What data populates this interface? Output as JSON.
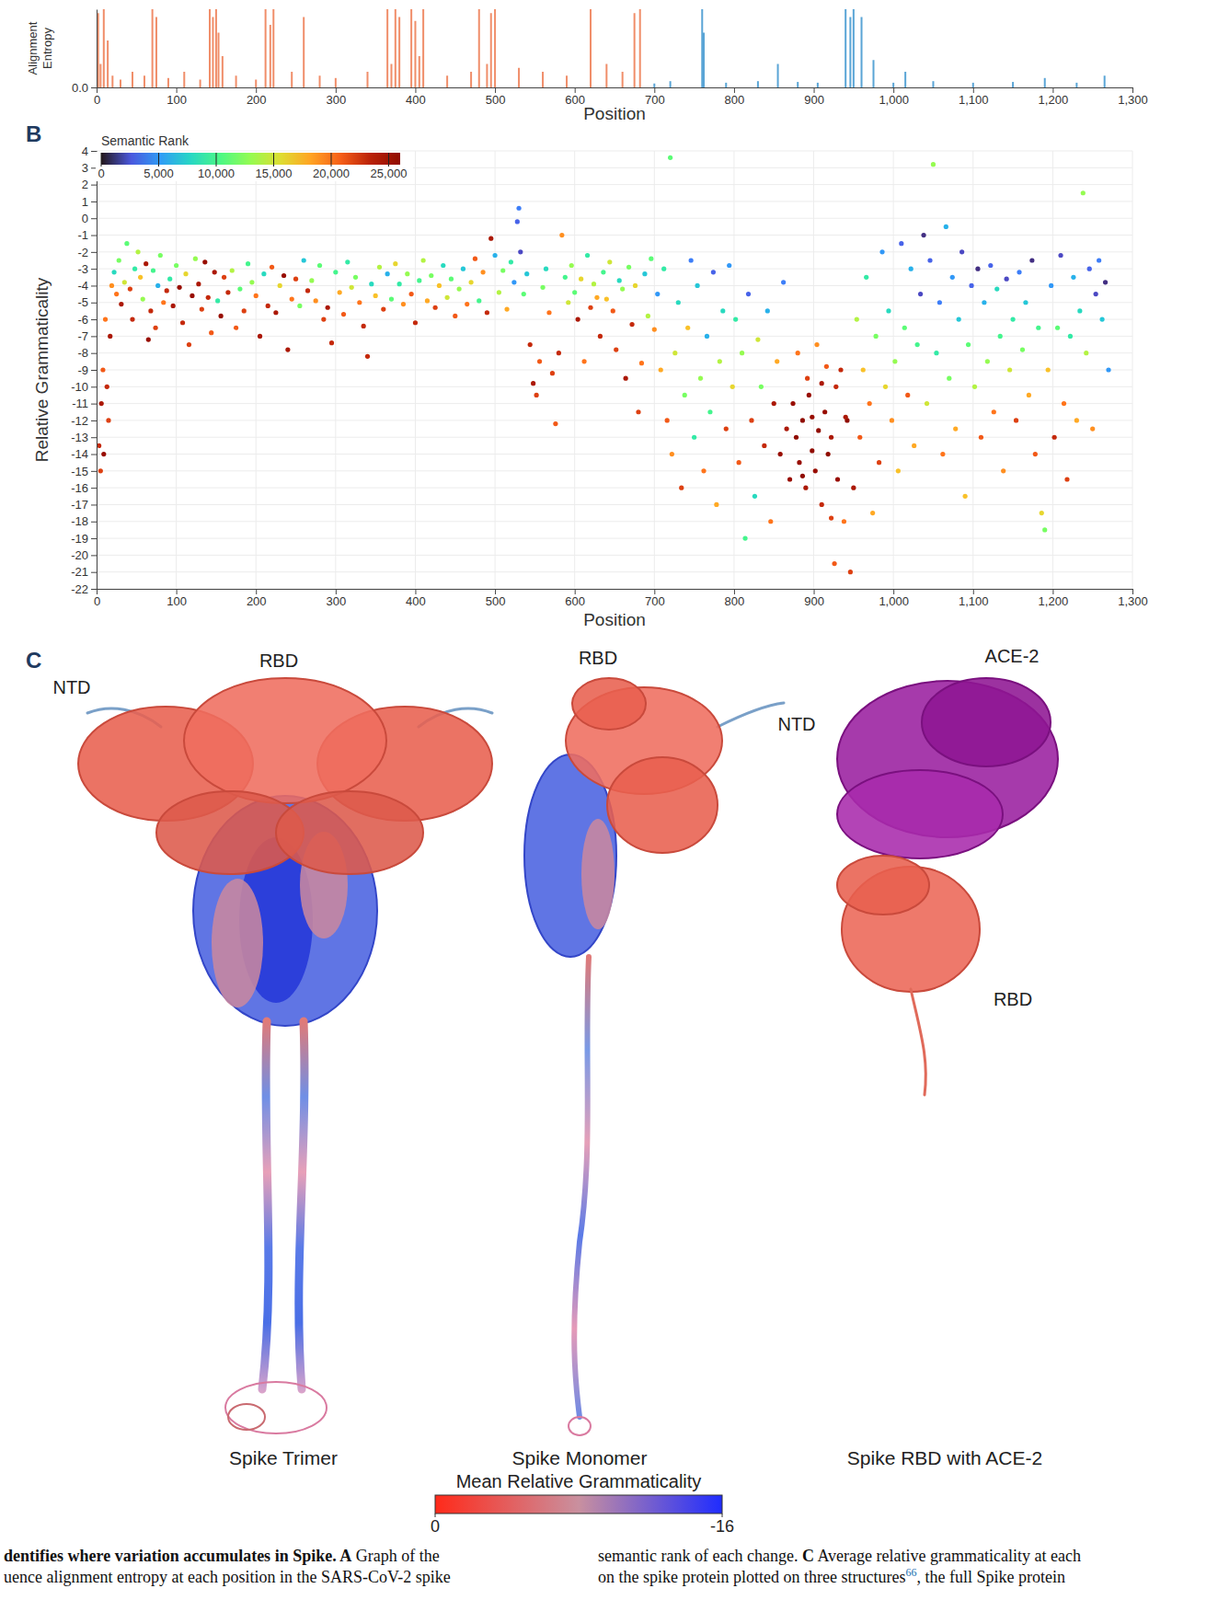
{
  "chart_data": [
    {
      "type": "bar",
      "x_label": "Position",
      "y_label": "Alignment Entropy",
      "xlim": [
        0,
        1300
      ],
      "xticks": [
        0,
        100,
        200,
        300,
        400,
        500,
        600,
        700,
        800,
        900,
        {
          "value": 1000,
          "label": "1,000"
        },
        {
          "value": 1100,
          "label": "1,100"
        },
        {
          "value": 1200,
          "label": "1,200"
        },
        {
          "value": 1300,
          "label": "1,300"
        }
      ],
      "ylim": [
        0,
        1
      ],
      "yticks": [
        {
          "value": 0,
          "label": "0.0"
        }
      ],
      "series": [
        {
          "color": "#f08e6a",
          "x": [
            2,
            5,
            9,
            14,
            20,
            30,
            45,
            60,
            70,
            75,
            90,
            110,
            130,
            142,
            146,
            150,
            153,
            158,
            175,
            200,
            212,
            218,
            222,
            245,
            260,
            280,
            300,
            340,
            365,
            370,
            375,
            380,
            395,
            400,
            405,
            410,
            440,
            470,
            480,
            490,
            495,
            500,
            530,
            560,
            590,
            620,
            640,
            660,
            675,
            682
          ],
          "values": [
            0.95,
            0.3,
            1.0,
            0.6,
            0.15,
            0.1,
            0.2,
            0.15,
            1.0,
            0.9,
            0.12,
            0.2,
            0.1,
            1.0,
            0.9,
            1.0,
            0.7,
            0.4,
            0.15,
            0.1,
            1.0,
            0.8,
            1.0,
            0.2,
            0.9,
            0.15,
            0.12,
            0.2,
            1.0,
            0.3,
            1.0,
            0.9,
            1.0,
            0.85,
            0.4,
            1.0,
            0.15,
            0.2,
            1.0,
            0.3,
            0.95,
            1.0,
            0.25,
            0.2,
            0.15,
            1.0,
            0.3,
            0.2,
            0.95,
            1.0
          ]
        },
        {
          "color": "#5aa5d6",
          "x": [
            700,
            720,
            760,
            762,
            790,
            830,
            855,
            880,
            905,
            940,
            946,
            950,
            960,
            975,
            1000,
            1015,
            1050,
            1100,
            1150,
            1190,
            1230,
            1265
          ],
          "values": [
            0.05,
            0.08,
            1.0,
            0.7,
            0.06,
            0.08,
            0.3,
            0.07,
            0.06,
            1.0,
            0.9,
            1.0,
            0.9,
            0.35,
            0.06,
            0.2,
            0.08,
            0.06,
            0.07,
            0.12,
            0.06,
            0.15
          ]
        }
      ]
    },
    {
      "type": "scatter",
      "x_label": "Position",
      "y_label": "Relative Grammaticality",
      "xlim": [
        0,
        1300
      ],
      "xticks": [
        0,
        100,
        200,
        300,
        400,
        500,
        600,
        700,
        800,
        900,
        {
          "value": 1000,
          "label": "1,000"
        },
        {
          "value": 1100,
          "label": "1,100"
        },
        {
          "value": 1200,
          "label": "1,200"
        },
        {
          "value": 1300,
          "label": "1,300"
        }
      ],
      "ylim": [
        -22,
        4
      ],
      "yticks": [
        -22,
        -21,
        -20,
        -19,
        -18,
        -17,
        -16,
        -15,
        -14,
        -13,
        -12,
        -11,
        -10,
        -9,
        -8,
        -7,
        -6,
        -5,
        -4,
        -3,
        -2,
        -1,
        0,
        1,
        2,
        3,
        4
      ],
      "grid": true,
      "marker": "circle",
      "x": [
        3,
        5,
        6,
        8,
        9,
        11,
        13,
        15,
        17,
        19,
        22,
        25,
        28,
        31,
        35,
        38,
        42,
        45,
        48,
        52,
        55,
        58,
        62,
        65,
        68,
        71,
        74,
        77,
        80,
        84,
        88,
        92,
        96,
        100,
        104,
        108,
        112,
        116,
        120,
        124,
        128,
        132,
        136,
        140,
        144,
        148,
        152,
        156,
        160,
        165,
        170,
        175,
        180,
        185,
        190,
        195,
        200,
        205,
        210,
        215,
        220,
        225,
        230,
        235,
        240,
        245,
        250,
        255,
        260,
        265,
        270,
        275,
        280,
        285,
        290,
        295,
        300,
        305,
        310,
        315,
        320,
        325,
        330,
        335,
        340,
        345,
        350,
        355,
        360,
        365,
        370,
        375,
        380,
        385,
        390,
        395,
        400,
        405,
        410,
        415,
        420,
        425,
        430,
        435,
        440,
        445,
        450,
        455,
        460,
        465,
        470,
        475,
        480,
        485,
        490,
        495,
        500,
        505,
        510,
        515,
        520,
        524,
        528,
        530,
        532,
        536,
        540,
        544,
        548,
        552,
        556,
        560,
        564,
        568,
        572,
        576,
        580,
        584,
        588,
        592,
        596,
        600,
        604,
        608,
        612,
        616,
        620,
        624,
        628,
        632,
        636,
        640,
        644,
        648,
        652,
        656,
        660,
        664,
        668,
        672,
        676,
        680,
        684,
        688,
        692,
        696,
        700,
        704,
        708,
        712,
        716,
        720,
        722,
        726,
        730,
        734,
        738,
        742,
        746,
        750,
        754,
        758,
        762,
        766,
        770,
        774,
        778,
        782,
        786,
        790,
        794,
        798,
        802,
        806,
        810,
        814,
        818,
        822,
        826,
        830,
        834,
        838,
        842,
        846,
        850,
        854,
        858,
        862,
        866,
        870,
        874,
        878,
        882,
        886,
        890,
        894,
        898,
        902,
        906,
        910,
        914,
        918,
        922,
        926,
        930,
        934,
        938,
        942,
        946,
        950,
        880,
        892,
        904,
        916,
        928,
        940,
        886,
        898,
        910,
        922,
        954,
        958,
        962,
        966,
        970,
        974,
        978,
        982,
        986,
        990,
        994,
        998,
        1002,
        1006,
        1010,
        1014,
        1018,
        1022,
        1026,
        1030,
        1034,
        1038,
        1042,
        1046,
        1050,
        1054,
        1058,
        1062,
        1066,
        1070,
        1074,
        1078,
        1082,
        1086,
        1090,
        1094,
        1098,
        1102,
        1106,
        1110,
        1114,
        1118,
        1122,
        1126,
        1130,
        1134,
        1138,
        1142,
        1146,
        1150,
        1154,
        1158,
        1162,
        1166,
        1170,
        1174,
        1178,
        1182,
        1186,
        1190,
        1194,
        1198,
        1202,
        1206,
        1210,
        1214,
        1218,
        1222,
        1226,
        1230,
        1234,
        1238,
        1242,
        1246,
        1250,
        1254,
        1258,
        1262,
        1266,
        1270
      ],
      "values": [
        -13.5,
        -15,
        -11,
        -9,
        -14,
        -6,
        -10,
        -12,
        -7,
        -4,
        -3.2,
        -4.5,
        -2.5,
        -5.1,
        -3.8,
        -1.5,
        -4.2,
        -6,
        -3,
        -2,
        -3.5,
        -4.8,
        -2.7,
        -7.2,
        -5.5,
        -3.1,
        -6.5,
        -4,
        -2.2,
        -5,
        -4.3,
        -3.6,
        -5.2,
        -2.8,
        -4.1,
        -6.2,
        -3.3,
        -7.5,
        -4.6,
        -2.4,
        -3.9,
        -5.4,
        -2.6,
        -4.7,
        -6.8,
        -3.2,
        -4.9,
        -5.8,
        -3.5,
        -4.4,
        -3.1,
        -6.5,
        -4.2,
        -5.5,
        -2.7,
        -3.8,
        -4.6,
        -7,
        -3.3,
        -5.2,
        -2.9,
        -5.6,
        -4,
        -3.4,
        -7.8,
        -4.8,
        -3.6,
        -5.2,
        -2.5,
        -4.3,
        -3.7,
        -4.9,
        -2.8,
        -6,
        -5.3,
        -7.4,
        -3.2,
        -4.4,
        -5.7,
        -2.6,
        -4.1,
        -3.5,
        -5,
        -6.4,
        -8.2,
        -3.9,
        -4.6,
        -2.9,
        -5.4,
        -3.3,
        -4.8,
        -2.7,
        -3.9,
        -5.1,
        -3.3,
        -4.5,
        -6.2,
        -3.7,
        -2.5,
        -4.9,
        -3.4,
        -5.3,
        -4,
        -2.8,
        -4.7,
        -3.6,
        -5.8,
        -4.2,
        -3,
        -5.1,
        -3.8,
        -2.4,
        -4.9,
        -3.2,
        -5.6,
        -1.2,
        -2.2,
        -4.4,
        -3.1,
        -5.4,
        -2.6,
        -3.8,
        -0.2,
        0.6,
        -2,
        -4.5,
        -3.3,
        -7.5,
        -9.8,
        -10.5,
        -8.5,
        -4.1,
        -3,
        -5.6,
        -9.2,
        -12.2,
        -8,
        -1,
        -3.5,
        -5,
        -2.8,
        -4.4,
        -6,
        -3.6,
        -8.5,
        -2.2,
        -5.3,
        -3.9,
        -4.7,
        -7,
        -3.2,
        -4.8,
        -2.6,
        -5.5,
        -7.8,
        -3.7,
        -4.2,
        -9.5,
        -2.9,
        -6.3,
        -4,
        -11.5,
        -8.6,
        -3.3,
        -5.8,
        -2.4,
        -6.6,
        -4.5,
        -9,
        -3,
        -12,
        3.6,
        -14,
        -8,
        -5,
        -16,
        -10.5,
        -6.5,
        -2.5,
        -13,
        -4,
        -9.5,
        -15,
        -7,
        -11.5,
        -3.2,
        -17,
        -8.5,
        -5.5,
        -12.5,
        -2.8,
        -10,
        -6,
        -14.5,
        -8,
        -19,
        -4.5,
        -12,
        -16.5,
        -7.2,
        -10,
        -13.5,
        -5.5,
        -18,
        -11,
        -8.5,
        -14,
        -3.8,
        -12.5,
        -15.5,
        -11,
        -13,
        -14.5,
        -12,
        -16,
        -10.5,
        -13.8,
        -15,
        -12.6,
        -17,
        -11.5,
        -14,
        -13,
        -20.5,
        -15.5,
        -9,
        -18,
        -12,
        -21,
        -16,
        -8,
        -9.5,
        -7.5,
        -8.8,
        -10,
        -11.8,
        -15.3,
        -11.8,
        -9.8,
        -17.8,
        -6,
        -13,
        -9,
        -3.5,
        -11,
        -17.5,
        -7,
        -14.5,
        -2,
        -10,
        -5.5,
        -12,
        -8.5,
        -15,
        -1.5,
        -6.5,
        -10.5,
        -3,
        -13.5,
        -7.5,
        -4.5,
        -1,
        -11,
        -2.5,
        3.2,
        -8,
        -5,
        -14,
        -0.5,
        -9.5,
        -3.5,
        -12.5,
        -6,
        -2,
        -16.5,
        -7.5,
        -4,
        -10,
        -3,
        -13,
        -5,
        -8.5,
        -2.8,
        -11.5,
        -4.2,
        -7,
        -15,
        -3.6,
        -9,
        -6,
        -12,
        -3.2,
        -7.8,
        -5,
        -10.5,
        -2.5,
        -14,
        -6.5,
        -17.5,
        -18.5,
        -9,
        -4,
        -13,
        -6.5,
        -2.2,
        -11,
        -15.5,
        -7,
        -3.5,
        -12,
        -5.5,
        1.5,
        -8,
        -3,
        -12.5,
        -4.5,
        -2.5,
        -6,
        -3.8,
        -9
      ],
      "semantic_rank": [
        23000,
        22000,
        24000,
        21000,
        25000,
        20000,
        23000,
        22000,
        24000,
        19000,
        8000,
        20000,
        12000,
        24000,
        15000,
        11000,
        22000,
        23000,
        9000,
        14000,
        17000,
        13000,
        24000,
        25000,
        23000,
        10000,
        22000,
        6000,
        12000,
        20000,
        23000,
        9000,
        24000,
        12000,
        25000,
        23000,
        16000,
        22000,
        25000,
        13000,
        24000,
        22000,
        25000,
        23000,
        21000,
        24000,
        9000,
        25000,
        22000,
        23000,
        14000,
        21000,
        11000,
        22000,
        10000,
        13000,
        20000,
        24000,
        8000,
        23000,
        21000,
        24000,
        16000,
        25000,
        24000,
        20000,
        22000,
        12000,
        7000,
        23000,
        13000,
        19000,
        11000,
        22000,
        24000,
        23000,
        10000,
        18000,
        21000,
        9000,
        15000,
        12000,
        20000,
        23000,
        23000,
        8000,
        17000,
        14000,
        22000,
        6000,
        11000,
        16000,
        9000,
        19000,
        13000,
        21000,
        23000,
        10000,
        14000,
        18000,
        12000,
        22000,
        17000,
        8000,
        15000,
        11000,
        21000,
        13000,
        7000,
        20000,
        16000,
        21000,
        10000,
        19000,
        23000,
        24000,
        6000,
        14000,
        12000,
        18000,
        9000,
        5000,
        3000,
        4000,
        2000,
        11000,
        7000,
        23000,
        24000,
        22000,
        21000,
        12000,
        8000,
        20000,
        22000,
        21000,
        23000,
        19000,
        10000,
        15000,
        13000,
        11000,
        24000,
        16000,
        20000,
        9000,
        22000,
        14000,
        18000,
        23000,
        10000,
        17000,
        15000,
        21000,
        22000,
        8000,
        13000,
        24000,
        12000,
        23000,
        16000,
        22000,
        20000,
        7000,
        14000,
        11000,
        19000,
        5000,
        18000,
        9000,
        21000,
        11000,
        19000,
        15000,
        8000,
        22000,
        12000,
        17000,
        4000,
        9000,
        7000,
        13000,
        20000,
        6000,
        10000,
        3000,
        18000,
        14000,
        8000,
        22000,
        5000,
        16000,
        9000,
        21000,
        13000,
        10000,
        3000,
        22000,
        8000,
        15000,
        12000,
        23000,
        6000,
        20000,
        24000,
        18000,
        25000,
        4000,
        24000,
        25000,
        25000,
        26000,
        25000,
        26000,
        24000,
        25000,
        26000,
        25000,
        26000,
        23000,
        25000,
        26000,
        24000,
        21000,
        25000,
        23000,
        20000,
        26000,
        22000,
        24000,
        20000,
        22000,
        19000,
        21000,
        23000,
        24000,
        26000,
        25000,
        24000,
        22000,
        14000,
        21000,
        17000,
        9000,
        20000,
        18000,
        12000,
        22000,
        5000,
        16000,
        8000,
        19000,
        13000,
        17000,
        3000,
        11000,
        21000,
        6000,
        18000,
        10000,
        2000,
        1000,
        15000,
        3000,
        13000,
        9000,
        4000,
        20000,
        6000,
        12000,
        5000,
        18000,
        7000,
        2000,
        17000,
        11000,
        3000,
        14000,
        1000,
        21000,
        6000,
        13000,
        3000,
        20000,
        8000,
        10000,
        19000,
        2000,
        15000,
        9000,
        22000,
        4000,
        12000,
        7000,
        18000,
        1000,
        21000,
        10000,
        16000,
        12000,
        17000,
        5000,
        23000,
        11000,
        2000,
        20000,
        22000,
        9000,
        6000,
        18000,
        8000,
        13000,
        14000,
        3000,
        19000,
        2000,
        4000,
        7000,
        1000,
        5000
      ],
      "colorbar": {
        "title": "Semantic Rank",
        "range": [
          0,
          26000
        ],
        "ticks": [
          0,
          {
            "value": 5000,
            "label": "5,000"
          },
          {
            "value": 10000,
            "label": "10,000"
          },
          {
            "value": 15000,
            "label": "15,000"
          },
          {
            "value": 20000,
            "label": "20,000"
          },
          {
            "value": 25000,
            "label": "25,000"
          }
        ]
      }
    }
  ],
  "panel_labels": [
    "B",
    "C"
  ],
  "structures": {
    "labels": [
      "RBD",
      "NTD",
      "RBD",
      "NTD",
      "ACE-2",
      "RBD"
    ],
    "captions": [
      "Spike Trimer",
      "Spike Monomer",
      "Spike RBD with ACE-2"
    ],
    "colorbar": {
      "title": "Mean Relative Grammaticality",
      "range": [
        0,
        -16
      ],
      "ticks": [
        0,
        -16
      ],
      "colors": [
        "#ff2a1a",
        "#c9909f",
        "#1f2cff"
      ]
    }
  },
  "caption": {
    "left": [
      [
        {
          "text": "dentifies where variation accumulates in Spike.",
          "bold": true
        },
        {
          "text": " A",
          "bold": true
        },
        {
          "text": " Graph of the"
        }
      ],
      [
        {
          "text": "uence alignment entropy at each position in the SARS-CoV-2 spike"
        }
      ]
    ],
    "right": [
      [
        {
          "text": "semantic rank of each change. "
        },
        {
          "text": "C",
          "bold": true
        },
        {
          "text": " Average relative grammaticality at each"
        }
      ],
      [
        {
          "text": "on the spike protein plotted on three structures"
        },
        {
          "text": "66",
          "superscript": true
        },
        {
          "text": ", the full Spike protein"
        }
      ]
    ]
  }
}
